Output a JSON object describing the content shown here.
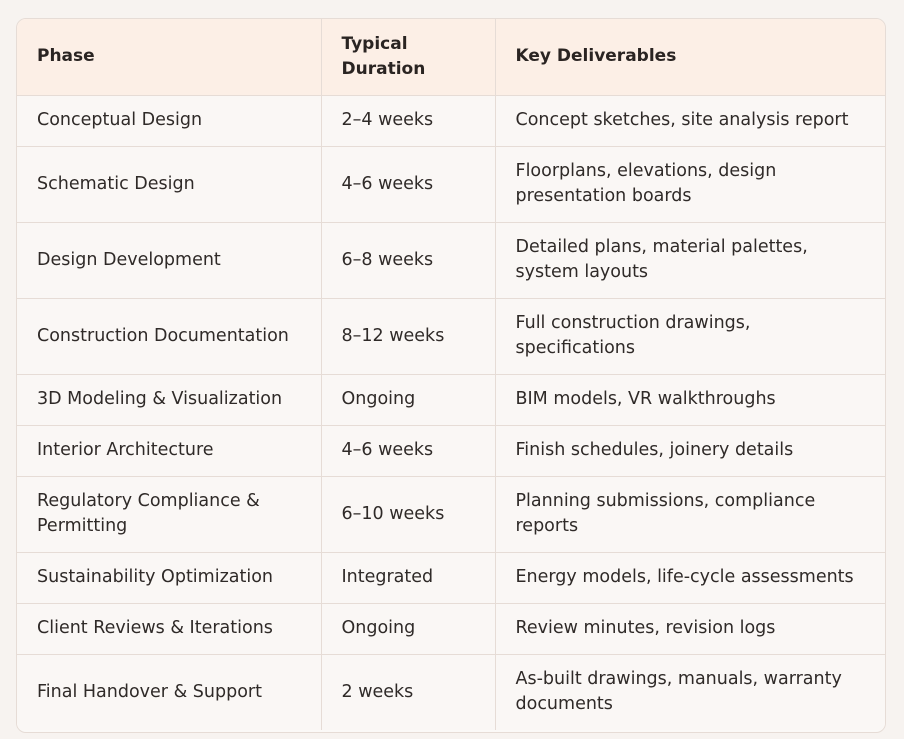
{
  "table": {
    "headers": [
      "Phase",
      "Typical Duration",
      "Key Deliverables"
    ],
    "rows": [
      {
        "phase": "Conceptual Design",
        "duration": "2–4 weeks",
        "deliverables": "Concept sketches, site analysis report"
      },
      {
        "phase": "Schematic Design",
        "duration": "4–6 weeks",
        "deliverables": "Floorplans, elevations, design presentation boards"
      },
      {
        "phase": "Design Development",
        "duration": "6–8 weeks",
        "deliverables": "Detailed plans, material palettes, system layouts"
      },
      {
        "phase": "Construction Documentation",
        "duration": "8–12 weeks",
        "deliverables": "Full construction drawings, specifications"
      },
      {
        "phase": "3D Modeling & Visualization",
        "duration": "Ongoing",
        "deliverables": "BIM models, VR walkthroughs"
      },
      {
        "phase": "Interior Architecture",
        "duration": "4–6 weeks",
        "deliverables": "Finish schedules, joinery details"
      },
      {
        "phase": "Regulatory Compliance & Permitting",
        "duration": "6–10 weeks",
        "deliverables": "Planning submissions, compliance reports"
      },
      {
        "phase": "Sustainability Optimization",
        "duration": "Integrated",
        "deliverables": "Energy models, life-cycle assessments"
      },
      {
        "phase": "Client Reviews & Iterations",
        "duration": "Ongoing",
        "deliverables": "Review minutes, revision logs"
      },
      {
        "phase": "Final Handover & Support",
        "duration": "2 weeks",
        "deliverables": "As-built drawings, manuals, warranty documents"
      }
    ]
  },
  "colors": {
    "page_background": "#f7f3f0",
    "header_background": "#fcefe6",
    "row_background": "#faf7f5",
    "border": "#e6dcd6",
    "text": "#2f2a28"
  }
}
